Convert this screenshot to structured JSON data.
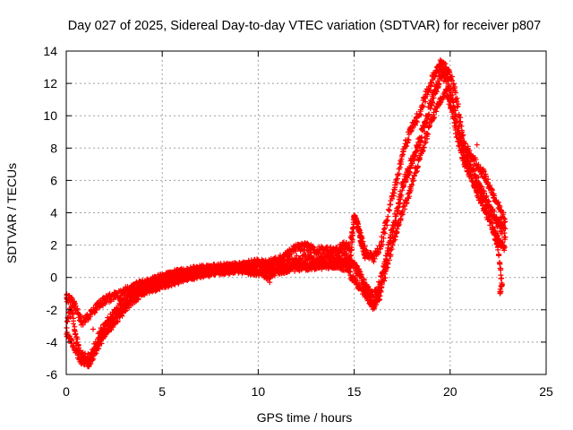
{
  "chart_data": {
    "type": "scatter",
    "title": "Day 027 of 2025, Sidereal Day-to-day VTEC variation (SDTVAR) for receiver p807",
    "xlabel": "GPS time / hours",
    "ylabel": "SDTVAR / TECUs",
    "xlim": [
      0,
      25
    ],
    "ylim": [
      -6,
      14
    ],
    "xticks": [
      0,
      5,
      10,
      15,
      20,
      25
    ],
    "yticks": [
      -6,
      -4,
      -2,
      0,
      2,
      4,
      6,
      8,
      10,
      12,
      14
    ],
    "grid": true,
    "marker": "+",
    "series": [
      {
        "name": "SDTVAR",
        "color": "#ff0000",
        "bands": [
          {
            "name": "main",
            "points": [
              [
                0.0,
                -2.5
              ],
              [
                0.3,
                -2.0
              ],
              [
                0.5,
                -3.8
              ],
              [
                0.8,
                -4.8
              ],
              [
                1.0,
                -5.1
              ],
              [
                1.3,
                -5.0
              ],
              [
                1.6,
                -4.0
              ],
              [
                2.0,
                -3.0
              ],
              [
                2.5,
                -2.3
              ],
              [
                3.0,
                -1.6
              ],
              [
                3.5,
                -1.0
              ],
              [
                4.0,
                -0.6
              ],
              [
                4.5,
                -0.3
              ],
              [
                5.0,
                -0.1
              ],
              [
                5.5,
                0.1
              ],
              [
                6.0,
                0.2
              ],
              [
                7.0,
                0.4
              ],
              [
                8.0,
                0.5
              ],
              [
                9.0,
                0.6
              ],
              [
                10.0,
                0.6
              ],
              [
                10.5,
                0.5
              ],
              [
                11.0,
                0.7
              ],
              [
                11.5,
                0.8
              ],
              [
                12.0,
                1.0
              ],
              [
                12.5,
                1.1
              ],
              [
                13.0,
                1.0
              ],
              [
                13.5,
                1.0
              ],
              [
                14.0,
                1.1
              ],
              [
                14.5,
                1.3
              ],
              [
                14.8,
                0.9
              ],
              [
                15.2,
                0.3
              ],
              [
                15.5,
                -0.4
              ],
              [
                15.8,
                -0.9
              ],
              [
                16.0,
                -1.3
              ],
              [
                16.3,
                -0.6
              ],
              [
                16.6,
                0.8
              ],
              [
                16.9,
                2.5
              ],
              [
                17.2,
                4.0
              ],
              [
                17.5,
                5.5
              ],
              [
                17.8,
                6.5
              ],
              [
                18.1,
                7.5
              ],
              [
                18.4,
                8.5
              ],
              [
                18.7,
                9.5
              ],
              [
                19.0,
                10.8
              ],
              [
                19.3,
                11.8
              ],
              [
                19.6,
                12.6
              ],
              [
                19.8,
                12.3
              ],
              [
                20.1,
                11.0
              ],
              [
                20.4,
                9.2
              ],
              [
                20.7,
                7.8
              ],
              [
                21.0,
                7.0
              ],
              [
                21.4,
                6.0
              ],
              [
                21.8,
                4.9
              ],
              [
                22.2,
                4.0
              ],
              [
                22.6,
                3.2
              ],
              [
                22.9,
                2.6
              ]
            ],
            "spread": 0.7,
            "step": 0.045
          },
          {
            "name": "upper",
            "points": [
              [
                0.0,
                -1.2
              ],
              [
                0.4,
                -1.6
              ],
              [
                0.8,
                -2.8
              ],
              [
                1.2,
                -2.4
              ],
              [
                1.6,
                -1.8
              ],
              [
                2.0,
                -1.4
              ],
              [
                2.6,
                -1.1
              ],
              [
                3.0,
                -0.9
              ],
              [
                3.5,
                -0.6
              ],
              [
                4.0,
                -0.4
              ],
              [
                5.0,
                -0.1
              ],
              [
                6.0,
                0.3
              ],
              [
                7.0,
                0.5
              ],
              [
                8.0,
                0.6
              ],
              [
                9.0,
                0.7
              ],
              [
                10.0,
                0.9
              ],
              [
                11.0,
                1.0
              ],
              [
                12.0,
                1.8
              ],
              [
                12.5,
                1.9
              ],
              [
                13.0,
                1.7
              ],
              [
                14.0,
                1.6
              ],
              [
                14.5,
                2.0
              ],
              [
                14.8,
                1.8
              ],
              [
                15.0,
                3.8
              ],
              [
                15.3,
                2.8
              ],
              [
                15.6,
                1.5
              ],
              [
                16.0,
                1.2
              ],
              [
                16.4,
                2.0
              ],
              [
                16.8,
                4.0
              ],
              [
                17.2,
                6.0
              ],
              [
                17.6,
                8.0
              ],
              [
                18.0,
                9.3
              ],
              [
                18.4,
                10.1
              ],
              [
                18.8,
                11.5
              ],
              [
                19.2,
                12.6
              ],
              [
                19.5,
                13.2
              ],
              [
                19.8,
                13.0
              ],
              [
                20.1,
                12.2
              ],
              [
                20.4,
                10.6
              ],
              [
                20.7,
                8.4
              ],
              [
                21.0,
                7.6
              ],
              [
                21.4,
                7.0
              ],
              [
                21.8,
                6.3
              ],
              [
                22.2,
                5.2
              ],
              [
                22.6,
                4.2
              ],
              [
                22.9,
                3.5
              ]
            ],
            "spread": 0.5,
            "step": 0.06
          },
          {
            "name": "lower",
            "points": [
              [
                0.0,
                -3.3
              ],
              [
                0.4,
                -4.3
              ],
              [
                0.8,
                -5.2
              ],
              [
                1.2,
                -5.3
              ],
              [
                1.5,
                -4.6
              ],
              [
                2.0,
                -3.5
              ],
              [
                2.5,
                -2.8
              ],
              [
                3.0,
                -2.0
              ],
              [
                3.5,
                -1.4
              ],
              [
                4.0,
                -0.9
              ],
              [
                5.0,
                -0.5
              ],
              [
                6.0,
                -0.1
              ],
              [
                7.0,
                0.2
              ],
              [
                8.0,
                0.4
              ],
              [
                9.0,
                0.5
              ],
              [
                10.0,
                0.3
              ],
              [
                10.5,
                0.1
              ],
              [
                11.0,
                0.4
              ],
              [
                12.0,
                0.6
              ],
              [
                13.0,
                0.7
              ],
              [
                14.0,
                0.8
              ],
              [
                14.6,
                0.6
              ],
              [
                15.0,
                -0.2
              ],
              [
                15.5,
                -0.9
              ],
              [
                16.0,
                -1.8
              ],
              [
                16.3,
                -1.2
              ],
              [
                16.6,
                0.2
              ],
              [
                17.0,
                2.0
              ],
              [
                17.4,
                3.6
              ],
              [
                17.8,
                5.0
              ],
              [
                18.2,
                6.6
              ],
              [
                18.6,
                8.0
              ],
              [
                19.0,
                9.6
              ],
              [
                19.4,
                10.8
              ],
              [
                19.8,
                11.5
              ],
              [
                20.1,
                10.2
              ],
              [
                20.4,
                8.4
              ],
              [
                20.7,
                7.2
              ],
              [
                21.0,
                6.4
              ],
              [
                21.4,
                5.2
              ],
              [
                21.8,
                4.2
              ],
              [
                22.2,
                3.1
              ],
              [
                22.6,
                2.2
              ],
              [
                22.9,
                1.8
              ]
            ],
            "spread": 0.45,
            "step": 0.06
          },
          {
            "name": "tail-drop",
            "points": [
              [
                22.2,
                3.0
              ],
              [
                22.5,
                1.8
              ],
              [
                22.7,
                -0.4
              ],
              [
                22.55,
                -1.2
              ]
            ],
            "spread": 0.25,
            "step": 0.04
          },
          {
            "name": "spike-15",
            "points": [
              [
                14.8,
                1.0
              ],
              [
                15.0,
                3.9
              ],
              [
                15.2,
                3.2
              ],
              [
                15.4,
                2.0
              ],
              [
                15.6,
                1.2
              ]
            ],
            "spread": 0.3,
            "step": 0.03
          }
        ],
        "outliers": [
          [
            21.4,
            8.2
          ],
          [
            1.4,
            -3.2
          ],
          [
            10.6,
            -0.3
          ]
        ]
      }
    ]
  }
}
